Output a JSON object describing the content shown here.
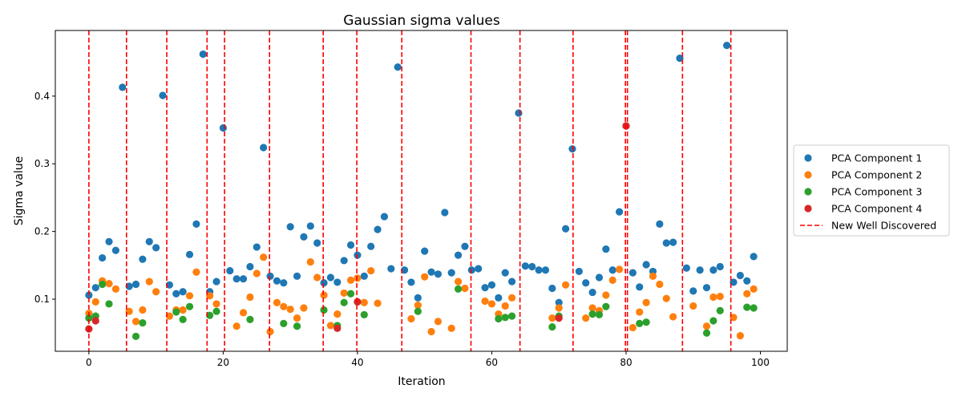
{
  "chart_data": {
    "type": "scatter",
    "title": "Gaussian sigma values",
    "xlabel": "Iteration",
    "ylabel": "Sigma value",
    "xlim": [
      -5,
      104
    ],
    "ylim": [
      0.023,
      0.497
    ],
    "xticks": [
      0,
      20,
      40,
      60,
      80,
      100
    ],
    "yticks": [
      0.1,
      0.2,
      0.3,
      0.4
    ],
    "grid": false,
    "legend_position": "center-right-outside",
    "vlines": {
      "name": "New Well Discovered",
      "color": "#ff0000",
      "x": [
        0,
        5.6,
        11.6,
        17.6,
        20.2,
        26.9,
        34.9,
        39.9,
        46.6,
        56.9,
        64.2,
        72.1,
        79.9,
        80.2,
        88.4,
        95.6
      ]
    },
    "series": [
      {
        "name": "PCA Component 1",
        "color": "#1f77b4",
        "points": [
          [
            0,
            0.106
          ],
          [
            1,
            0.117
          ],
          [
            2,
            0.161
          ],
          [
            3,
            0.185
          ],
          [
            4,
            0.172
          ],
          [
            5,
            0.413
          ],
          [
            6,
            0.119
          ],
          [
            7,
            0.122
          ],
          [
            8,
            0.159
          ],
          [
            9,
            0.185
          ],
          [
            10,
            0.176
          ],
          [
            11,
            0.401
          ],
          [
            12,
            0.121
          ],
          [
            13,
            0.108
          ],
          [
            14,
            0.111
          ],
          [
            15,
            0.166
          ],
          [
            16,
            0.211
          ],
          [
            17,
            0.462
          ],
          [
            18,
            0.111
          ],
          [
            19,
            0.126
          ],
          [
            20,
            0.353
          ],
          [
            21,
            0.142
          ],
          [
            22,
            0.13
          ],
          [
            23,
            0.13
          ],
          [
            24,
            0.148
          ],
          [
            25,
            0.177
          ],
          [
            26,
            0.324
          ],
          [
            27,
            0.134
          ],
          [
            28,
            0.127
          ],
          [
            29,
            0.124
          ],
          [
            30,
            0.207
          ],
          [
            31,
            0.134
          ],
          [
            32,
            0.192
          ],
          [
            33,
            0.208
          ],
          [
            34,
            0.183
          ],
          [
            35,
            0.124
          ],
          [
            36,
            0.132
          ],
          [
            37,
            0.125
          ],
          [
            38,
            0.157
          ],
          [
            39,
            0.18
          ],
          [
            40,
            0.165
          ],
          [
            41,
            0.134
          ],
          [
            42,
            0.178
          ],
          [
            43,
            0.203
          ],
          [
            44,
            0.222
          ],
          [
            45,
            0.145
          ],
          [
            46,
            0.443
          ],
          [
            47,
            0.143
          ],
          [
            48,
            0.125
          ],
          [
            49,
            0.102
          ],
          [
            50,
            0.171
          ],
          [
            51,
            0.14
          ],
          [
            52,
            0.137
          ],
          [
            53,
            0.228
          ],
          [
            54,
            0.139
          ],
          [
            55,
            0.165
          ],
          [
            56,
            0.178
          ],
          [
            57,
            0.143
          ],
          [
            58,
            0.145
          ],
          [
            59,
            0.117
          ],
          [
            60,
            0.121
          ],
          [
            61,
            0.102
          ],
          [
            62,
            0.139
          ],
          [
            63,
            0.126
          ],
          [
            64,
            0.375
          ],
          [
            65,
            0.149
          ],
          [
            66,
            0.148
          ],
          [
            67,
            0.143
          ],
          [
            68,
            0.143
          ],
          [
            69,
            0.116
          ],
          [
            70,
            0.095
          ],
          [
            71,
            0.204
          ],
          [
            72,
            0.322
          ],
          [
            73,
            0.141
          ],
          [
            74,
            0.124
          ],
          [
            75,
            0.11
          ],
          [
            76,
            0.132
          ],
          [
            77,
            0.174
          ],
          [
            78,
            0.143
          ],
          [
            79,
            0.229
          ],
          [
            80,
            0.356
          ],
          [
            81,
            0.139
          ],
          [
            82,
            0.118
          ],
          [
            83,
            0.151
          ],
          [
            84,
            0.141
          ],
          [
            85,
            0.211
          ],
          [
            86,
            0.183
          ],
          [
            87,
            0.184
          ],
          [
            88,
            0.456
          ],
          [
            89,
            0.146
          ],
          [
            90,
            0.112
          ],
          [
            91,
            0.143
          ],
          [
            92,
            0.117
          ],
          [
            93,
            0.143
          ],
          [
            94,
            0.148
          ],
          [
            95,
            0.475
          ],
          [
            96,
            0.125
          ],
          [
            97,
            0.135
          ],
          [
            98,
            0.127
          ],
          [
            99,
            0.163
          ]
        ]
      },
      {
        "name": "PCA Component 2",
        "color": "#ff7f0e",
        "points": [
          [
            0,
            0.079
          ],
          [
            1,
            0.096
          ],
          [
            2,
            0.127
          ],
          [
            3,
            0.123
          ],
          [
            4,
            0.115
          ],
          [
            6,
            0.082
          ],
          [
            7,
            0.067
          ],
          [
            8,
            0.084
          ],
          [
            9,
            0.126
          ],
          [
            10,
            0.111
          ],
          [
            12,
            0.075
          ],
          [
            13,
            0.084
          ],
          [
            14,
            0.084
          ],
          [
            15,
            0.105
          ],
          [
            16,
            0.14
          ],
          [
            18,
            0.105
          ],
          [
            19,
            0.093
          ],
          [
            22,
            0.06
          ],
          [
            23,
            0.08
          ],
          [
            24,
            0.103
          ],
          [
            25,
            0.138
          ],
          [
            26,
            0.162
          ],
          [
            27,
            0.052
          ],
          [
            28,
            0.095
          ],
          [
            29,
            0.089
          ],
          [
            30,
            0.085
          ],
          [
            31,
            0.072
          ],
          [
            32,
            0.087
          ],
          [
            33,
            0.155
          ],
          [
            34,
            0.132
          ],
          [
            35,
            0.106
          ],
          [
            36,
            0.061
          ],
          [
            37,
            0.078
          ],
          [
            38,
            0.109
          ],
          [
            39,
            0.128
          ],
          [
            40,
            0.131
          ],
          [
            41,
            0.095
          ],
          [
            42,
            0.142
          ],
          [
            43,
            0.094
          ],
          [
            48,
            0.071
          ],
          [
            49,
            0.091
          ],
          [
            50,
            0.133
          ],
          [
            51,
            0.052
          ],
          [
            52,
            0.067
          ],
          [
            54,
            0.057
          ],
          [
            55,
            0.126
          ],
          [
            56,
            0.116
          ],
          [
            59,
            0.097
          ],
          [
            60,
            0.093
          ],
          [
            61,
            0.078
          ],
          [
            62,
            0.09
          ],
          [
            63,
            0.102
          ],
          [
            69,
            0.072
          ],
          [
            70,
            0.087
          ],
          [
            71,
            0.121
          ],
          [
            74,
            0.072
          ],
          [
            75,
            0.087
          ],
          [
            76,
            0.083
          ],
          [
            77,
            0.106
          ],
          [
            78,
            0.128
          ],
          [
            79,
            0.144
          ],
          [
            81,
            0.058
          ],
          [
            82,
            0.081
          ],
          [
            83,
            0.095
          ],
          [
            84,
            0.134
          ],
          [
            85,
            0.122
          ],
          [
            86,
            0.101
          ],
          [
            87,
            0.074
          ],
          [
            90,
            0.09
          ],
          [
            92,
            0.06
          ],
          [
            93,
            0.103
          ],
          [
            94,
            0.104
          ],
          [
            96,
            0.073
          ],
          [
            97,
            0.046
          ],
          [
            98,
            0.108
          ],
          [
            99,
            0.115
          ]
        ]
      },
      {
        "name": "PCA Component 3",
        "color": "#2ca02c",
        "points": [
          [
            0,
            0.072
          ],
          [
            1,
            0.075
          ],
          [
            2,
            0.122
          ],
          [
            3,
            0.093
          ],
          [
            7,
            0.045
          ],
          [
            8,
            0.065
          ],
          [
            13,
            0.081
          ],
          [
            14,
            0.07
          ],
          [
            15,
            0.089
          ],
          [
            18,
            0.076
          ],
          [
            19,
            0.082
          ],
          [
            24,
            0.07
          ],
          [
            29,
            0.064
          ],
          [
            31,
            0.06
          ],
          [
            35,
            0.084
          ],
          [
            37,
            0.061
          ],
          [
            38,
            0.095
          ],
          [
            39,
            0.108
          ],
          [
            40,
            0.096
          ],
          [
            41,
            0.077
          ],
          [
            49,
            0.082
          ],
          [
            55,
            0.115
          ],
          [
            61,
            0.071
          ],
          [
            62,
            0.073
          ],
          [
            63,
            0.075
          ],
          [
            69,
            0.059
          ],
          [
            70,
            0.075
          ],
          [
            75,
            0.078
          ],
          [
            76,
            0.077
          ],
          [
            77,
            0.089
          ],
          [
            82,
            0.064
          ],
          [
            83,
            0.066
          ],
          [
            92,
            0.05
          ],
          [
            93,
            0.068
          ],
          [
            94,
            0.083
          ],
          [
            98,
            0.088
          ],
          [
            99,
            0.087
          ]
        ]
      },
      {
        "name": "PCA Component 4",
        "color": "#d62728",
        "points": [
          [
            0,
            0.056
          ],
          [
            1,
            0.068
          ],
          [
            37,
            0.057
          ],
          [
            40,
            0.096
          ],
          [
            70,
            0.072
          ],
          [
            80,
            0.356
          ]
        ]
      }
    ]
  }
}
